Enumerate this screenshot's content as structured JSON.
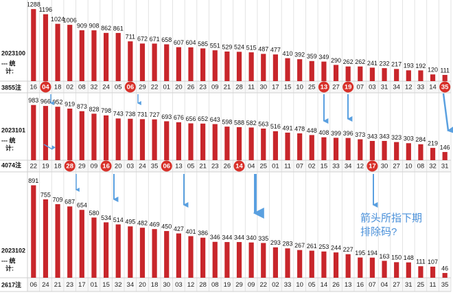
{
  "chart_data": [
    {
      "type": "bar",
      "title": "2023100",
      "subtitle": [
        "--- 统",
        "计:"
      ],
      "note": "3855注",
      "color": "#c8262b",
      "categories": [
        "16",
        "04",
        "18",
        "02",
        "08",
        "32",
        "24",
        "05",
        "06",
        "29",
        "22",
        "01",
        "20",
        "26",
        "23",
        "09",
        "21",
        "28",
        "11",
        "30",
        "17",
        "15",
        "10",
        "25",
        "13",
        "27",
        "19",
        "07",
        "03",
        "31",
        "34",
        "12",
        "33",
        "14",
        "35"
      ],
      "values": [
        1288,
        1196,
        1024,
        1006,
        909,
        908,
        862,
        861,
        711,
        672,
        671,
        658,
        607,
        604,
        585,
        551,
        529,
        524,
        515,
        487,
        477,
        410,
        392,
        359,
        349,
        290,
        262,
        262,
        241,
        232,
        217,
        193,
        192,
        120,
        111
      ],
      "circled": [
        "04",
        "06",
        "13",
        "19",
        "35"
      ],
      "ylim": [
        0,
        1450
      ]
    },
    {
      "type": "bar",
      "title": "2023101",
      "subtitle": [
        "--- 统",
        "计:"
      ],
      "note": "4074注",
      "color": "#c8262b",
      "categories": [
        "22",
        "19",
        "18",
        "28",
        "29",
        "09",
        "16",
        "20",
        "03",
        "24",
        "35",
        "06",
        "13",
        "05",
        "21",
        "23",
        "26",
        "14",
        "04",
        "25",
        "01",
        "11",
        "07",
        "02",
        "15",
        "33",
        "34",
        "12",
        "17",
        "30",
        "27",
        "10",
        "08",
        "32",
        "31"
      ],
      "values": [
        983,
        966,
        952,
        919,
        873,
        828,
        798,
        743,
        738,
        731,
        727,
        693,
        676,
        656,
        652,
        643,
        598,
        588,
        582,
        563,
        516,
        491,
        478,
        448,
        408,
        399,
        396,
        373,
        343,
        343,
        323,
        303,
        284,
        219,
        146
      ],
      "circled": [
        "28",
        "16",
        "06",
        "14",
        "17"
      ],
      "ylim": [
        0,
        1200
      ]
    },
    {
      "type": "bar",
      "title": "2023102",
      "subtitle": [
        "--- 统",
        "计:"
      ],
      "note": "2617注",
      "color": "#c8262b",
      "categories": [
        "06",
        "24",
        "21",
        "23",
        "17",
        "01",
        "15",
        "32",
        "34",
        "20",
        "18",
        "30",
        "03",
        "12",
        "28",
        "08",
        "19",
        "29",
        "09",
        "22",
        "02",
        "33",
        "10",
        "05",
        "14",
        "26",
        "13",
        "16",
        "07",
        "04",
        "27",
        "31",
        "25",
        "11",
        "35"
      ],
      "values": [
        891,
        755,
        709,
        687,
        654,
        580,
        534,
        514,
        495,
        482,
        469,
        450,
        427,
        401,
        386,
        346,
        344,
        344,
        340,
        335,
        293,
        283,
        267,
        261,
        253,
        244,
        227,
        195,
        194,
        163,
        150,
        148,
        111,
        107,
        46
      ],
      "circled": [],
      "ylim": [
        0,
        1020
      ],
      "annotation": [
        "箭头所指下期",
        "排除码?"
      ]
    }
  ]
}
